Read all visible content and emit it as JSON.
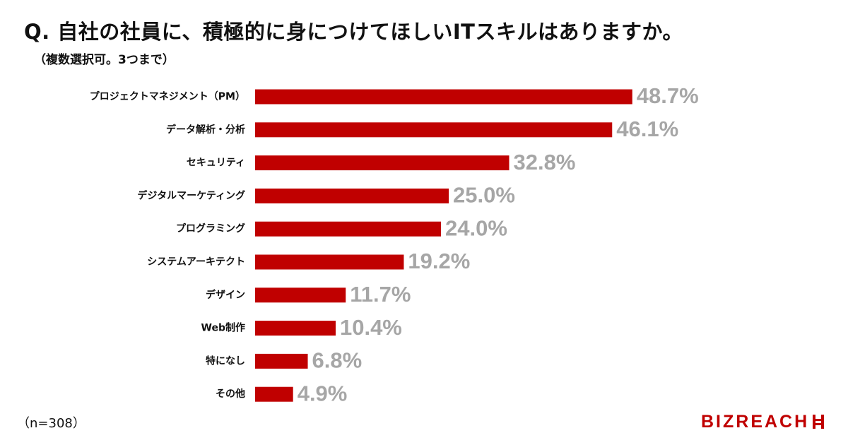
{
  "title": "Q. 自社の社員に、積極的に身につけてほしいITスキルはありますか。",
  "subtitle": "（複数選択可。3つまで）",
  "sample_note": "（n=308）",
  "logo": {
    "text": "BIZREACH",
    "color": "#c00000"
  },
  "colors": {
    "bar": "#c00000",
    "value_label": "#a6a6a6"
  },
  "chart_data": {
    "type": "bar",
    "orientation": "horizontal",
    "categories": [
      "プロジェクトマネジメント（PM）",
      "データ解析・分析",
      "セキュリティ",
      "デジタルマーケティング",
      "プログラミング",
      "システムアーキテクト",
      "デザイン",
      "Web制作",
      "特になし",
      "その他"
    ],
    "values": [
      48.7,
      46.1,
      32.8,
      25.0,
      24.0,
      19.2,
      11.7,
      10.4,
      6.8,
      4.9
    ],
    "value_labels": [
      "48.7%",
      "46.1%",
      "32.8%",
      "25.0%",
      "24.0%",
      "19.2%",
      "11.7%",
      "10.4%",
      "6.8%",
      "4.9%"
    ],
    "unit": "%",
    "xlim": [
      0,
      50
    ],
    "grid": false,
    "legend": "none"
  }
}
